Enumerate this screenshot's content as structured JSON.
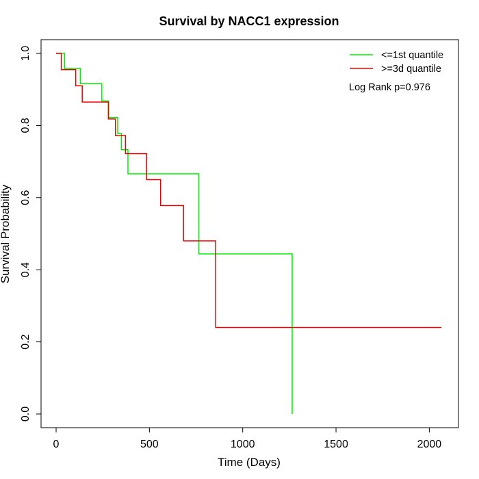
{
  "chart_data": {
    "type": "line",
    "step": true,
    "title": "Survival by NACC1 expression",
    "xlabel": "Time (Days)",
    "ylabel": "Survival Probability",
    "xlim": [
      0,
      2070
    ],
    "ylim": [
      0,
      1
    ],
    "x_ticks": [
      0,
      500,
      1000,
      1500,
      2000
    ],
    "y_ticks": [
      0.0,
      0.2,
      0.4,
      0.6,
      0.8,
      1.0
    ],
    "x_tick_labels": [
      "0",
      "500",
      "1000",
      "1500",
      "2000"
    ],
    "y_tick_labels": [
      "0.0",
      "0.2",
      "0.4",
      "0.6",
      "0.8",
      "1.0"
    ],
    "legend_position": "top-right",
    "annotation": "Log Rank p=0.976",
    "series": [
      {
        "name": "<=1st quantile",
        "color": "#00ee00",
        "x": [
          0,
          45,
          130,
          245,
          282,
          330,
          350,
          385,
          765,
          1265
        ],
        "y": [
          1.0,
          0.958,
          0.916,
          0.868,
          0.822,
          0.778,
          0.733,
          0.666,
          0.444,
          0.0
        ]
      },
      {
        "name": ">=3d quantile",
        "color": "#ee0000",
        "x": [
          0,
          28,
          105,
          140,
          280,
          318,
          372,
          485,
          560,
          683,
          855,
          2065
        ],
        "y": [
          1.0,
          0.955,
          0.91,
          0.865,
          0.818,
          0.772,
          0.722,
          0.65,
          0.578,
          0.48,
          0.24,
          0.24
        ]
      }
    ]
  }
}
